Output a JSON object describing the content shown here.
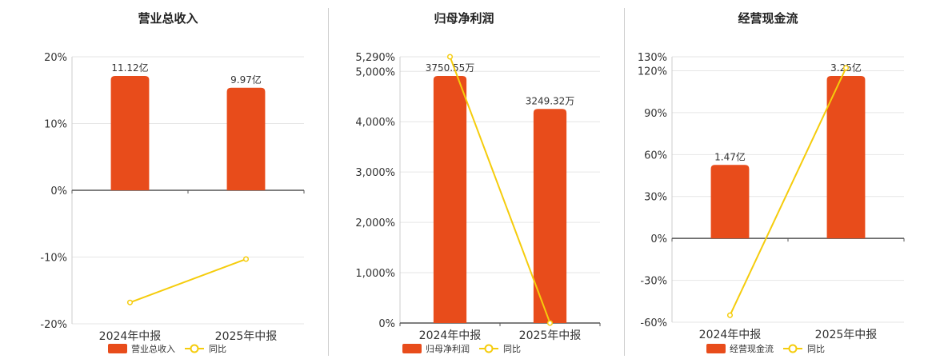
{
  "chart_data": [
    {
      "type": "bar",
      "title": "营业总收入",
      "categories": [
        "2024年中报",
        "2025年中报"
      ],
      "series": [
        {
          "name": "营业总收入",
          "kind": "bar",
          "axis": "left",
          "values": [
            11.12,
            9.97
          ],
          "labels": [
            "11.12亿",
            "9.97亿"
          ],
          "color": "#e84c1b"
        },
        {
          "name": "同比",
          "kind": "line",
          "axis": "left",
          "values": [
            -16.8,
            -10.3
          ],
          "color": "#f5cc0c"
        }
      ],
      "yticks": [
        "20%",
        "10%",
        "0%",
        "-10%",
        "-20%"
      ],
      "ylim": [
        -20,
        20
      ],
      "grid": true,
      "legend": "bottom"
    },
    {
      "type": "bar",
      "title": "归母净利润",
      "categories": [
        "2024年中报",
        "2025年中报"
      ],
      "series": [
        {
          "name": "归母净利润",
          "kind": "bar",
          "axis": "left",
          "values": [
            3750.55,
            3249.32
          ],
          "labels": [
            "3750.55万",
            "3249.32万"
          ],
          "color": "#e84c1b"
        },
        {
          "name": "同比",
          "kind": "line",
          "axis": "left",
          "values": [
            5290,
            0
          ],
          "color": "#f5cc0c"
        }
      ],
      "yticks": [
        "5,290%",
        "5,000%",
        "4,000%",
        "3,000%",
        "2,000%",
        "1,000%",
        "0%"
      ],
      "ylim": [
        0,
        5290
      ],
      "grid": true,
      "legend": "bottom"
    },
    {
      "type": "bar",
      "title": "经营现金流",
      "categories": [
        "2024年中报",
        "2025年中报"
      ],
      "series": [
        {
          "name": "经营现金流",
          "kind": "bar",
          "axis": "left",
          "values": [
            1.47,
            3.25
          ],
          "labels": [
            "1.47亿",
            "3.25亿"
          ],
          "color": "#e84c1b"
        },
        {
          "name": "同比",
          "kind": "line",
          "axis": "left",
          "values": [
            -55,
            122
          ],
          "color": "#f5cc0c"
        }
      ],
      "yticks": [
        "130%",
        "120%",
        "90%",
        "60%",
        "30%",
        "0%",
        "-30%",
        "-60%"
      ],
      "ylim": [
        -60,
        130
      ],
      "grid": true,
      "legend": "bottom"
    }
  ]
}
